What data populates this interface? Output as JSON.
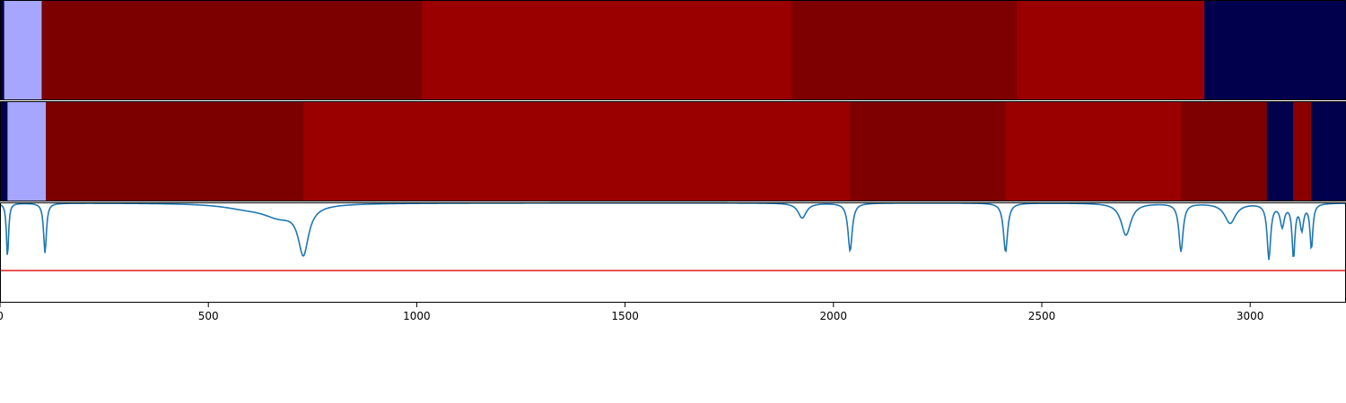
{
  "chart_data": {
    "type": "heatmap",
    "xlim": [
      0,
      3230
    ],
    "x_ticks": [
      0,
      500,
      1000,
      1500,
      2000,
      2500,
      3000
    ],
    "tracks": [
      {
        "segments": [
          {
            "start": 0,
            "end": 10,
            "color": "#00004c"
          },
          {
            "start": 10,
            "end": 100,
            "color": "#a6a6ff"
          },
          {
            "start": 100,
            "end": 1013,
            "color": "#7c0000"
          },
          {
            "start": 1013,
            "end": 1900,
            "color": "#9b0000"
          },
          {
            "start": 1900,
            "end": 2440,
            "color": "#7e0000"
          },
          {
            "start": 2440,
            "end": 2890,
            "color": "#9b0000"
          },
          {
            "start": 2890,
            "end": 3230,
            "color": "#00004c"
          }
        ]
      },
      {
        "segments": [
          {
            "start": 0,
            "end": 18,
            "color": "#00004c"
          },
          {
            "start": 18,
            "end": 110,
            "color": "#a6a6ff"
          },
          {
            "start": 110,
            "end": 728,
            "color": "#7c0000"
          },
          {
            "start": 728,
            "end": 2040,
            "color": "#9b0000"
          },
          {
            "start": 2040,
            "end": 2413,
            "color": "#7e0000"
          },
          {
            "start": 2413,
            "end": 2834,
            "color": "#9b0000"
          },
          {
            "start": 2834,
            "end": 3040,
            "color": "#7e0000"
          },
          {
            "start": 3040,
            "end": 3103,
            "color": "#00004c"
          },
          {
            "start": 3103,
            "end": 3147,
            "color": "#8a0000"
          },
          {
            "start": 3147,
            "end": 3230,
            "color": "#00004c"
          }
        ]
      }
    ],
    "line_panel": {
      "ylim": [
        0,
        1
      ],
      "threshold": 0.32,
      "threshold_color": "#e41a1c",
      "line_color": "#1f77b4",
      "baseline": 0.995,
      "dips": [
        {
          "center": 18,
          "width": 3,
          "depth": 0.55
        },
        {
          "center": 108,
          "width": 4,
          "depth": 0.5
        },
        {
          "center": 590,
          "width": 70,
          "depth": 0.04
        },
        {
          "center": 670,
          "width": 50,
          "depth": 0.12
        },
        {
          "center": 728,
          "width": 15,
          "depth": 0.47
        },
        {
          "center": 1925,
          "width": 12,
          "depth": 0.15
        },
        {
          "center": 2040,
          "width": 6,
          "depth": 0.48
        },
        {
          "center": 2413,
          "width": 6,
          "depth": 0.49
        },
        {
          "center": 2702,
          "width": 14,
          "depth": 0.32
        },
        {
          "center": 2834,
          "width": 6,
          "depth": 0.48
        },
        {
          "center": 2952,
          "width": 16,
          "depth": 0.2
        },
        {
          "center": 3045,
          "width": 5,
          "depth": 0.55
        },
        {
          "center": 3077,
          "width": 6,
          "depth": 0.22
        },
        {
          "center": 3104,
          "width": 4,
          "depth": 0.53
        },
        {
          "center": 3124,
          "width": 5,
          "depth": 0.25
        },
        {
          "center": 3147,
          "width": 4,
          "depth": 0.45
        }
      ]
    }
  }
}
